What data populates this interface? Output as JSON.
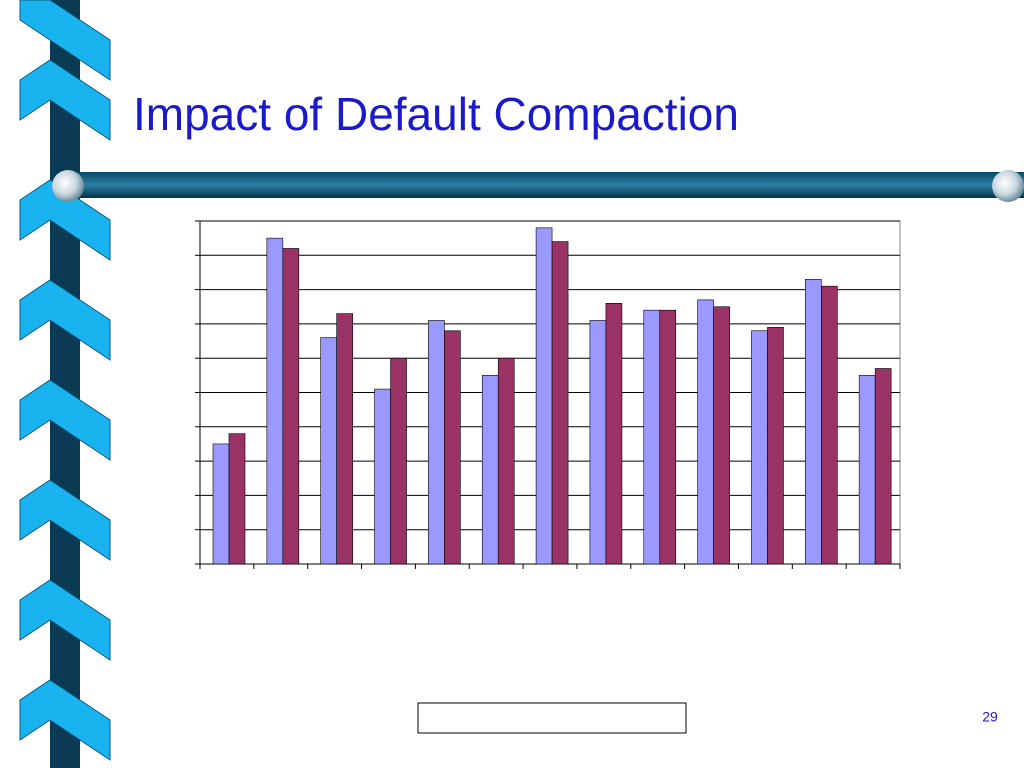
{
  "title": "Impact of Default Compaction",
  "page_number": "29",
  "chart_data": {
    "type": "bar",
    "categories": [
      null,
      null,
      null,
      null,
      null,
      null,
      null,
      null,
      null,
      null,
      null,
      null,
      null
    ],
    "series": [
      {
        "color": "#9999ff",
        "values": [
          3.5,
          9.5,
          6.6,
          5.1,
          7.1,
          5.5,
          9.8,
          7.1,
          7.4,
          7.7,
          6.8,
          8.3,
          5.5
        ]
      },
      {
        "color": "#993366",
        "values": [
          3.8,
          9.2,
          7.3,
          6.0,
          6.8,
          6.0,
          9.4,
          7.6,
          7.4,
          7.5,
          6.9,
          8.1,
          5.7
        ]
      }
    ],
    "ylim": [
      0,
      10
    ],
    "yticks": [
      0,
      1,
      2,
      3,
      4,
      5,
      6,
      7,
      8,
      9,
      10
    ],
    "grid": true
  }
}
